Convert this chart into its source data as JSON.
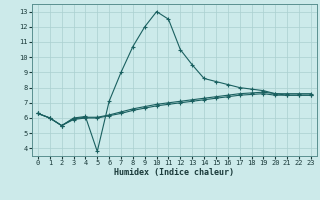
{
  "xlabel": "Humidex (Indice chaleur)",
  "bg_color": "#cceaea",
  "grid_color": "#aad0d0",
  "line_color": "#1a6060",
  "xlim": [
    -0.5,
    23.5
  ],
  "ylim": [
    3.5,
    13.5
  ],
  "xticks": [
    0,
    1,
    2,
    3,
    4,
    5,
    6,
    7,
    8,
    9,
    10,
    11,
    12,
    13,
    14,
    15,
    16,
    17,
    18,
    19,
    20,
    21,
    22,
    23
  ],
  "yticks": [
    4,
    5,
    6,
    7,
    8,
    9,
    10,
    11,
    12,
    13
  ],
  "line1_x": [
    0,
    1,
    2,
    3,
    4,
    5,
    6,
    7,
    8,
    9,
    10,
    11,
    12,
    13,
    14,
    15,
    16,
    17,
    18,
    19,
    20,
    21,
    22,
    23
  ],
  "line1_y": [
    6.3,
    6.0,
    5.5,
    6.0,
    6.1,
    3.8,
    7.1,
    9.0,
    10.7,
    12.0,
    13.0,
    12.5,
    10.5,
    9.5,
    8.6,
    8.4,
    8.2,
    8.0,
    7.9,
    7.8,
    7.6,
    7.5,
    7.5,
    7.5
  ],
  "line2_x": [
    0,
    1,
    2,
    3,
    4,
    5,
    6,
    7,
    8,
    9,
    10,
    11,
    12,
    13,
    14,
    15,
    16,
    17,
    18,
    19,
    20,
    21,
    22,
    23
  ],
  "line2_y": [
    6.3,
    6.0,
    5.5,
    5.9,
    6.0,
    6.0,
    6.15,
    6.3,
    6.5,
    6.65,
    6.8,
    6.9,
    7.0,
    7.1,
    7.2,
    7.3,
    7.4,
    7.5,
    7.55,
    7.6,
    7.5,
    7.5,
    7.5,
    7.5
  ],
  "line3_x": [
    0,
    1,
    2,
    3,
    4,
    5,
    6,
    7,
    8,
    9,
    10,
    11,
    12,
    13,
    14,
    15,
    16,
    17,
    18,
    19,
    20,
    21,
    22,
    23
  ],
  "line3_y": [
    6.3,
    6.0,
    5.5,
    5.95,
    6.05,
    6.05,
    6.2,
    6.4,
    6.6,
    6.75,
    6.9,
    7.0,
    7.1,
    7.2,
    7.3,
    7.4,
    7.5,
    7.6,
    7.65,
    7.7,
    7.6,
    7.6,
    7.6,
    7.6
  ],
  "ylabel_fontsize": 5,
  "xlabel_fontsize": 6,
  "tick_fontsize_x": 5,
  "tick_fontsize_y": 5,
  "linewidth": 0.8,
  "markersize": 3,
  "markeredgewidth": 0.8
}
